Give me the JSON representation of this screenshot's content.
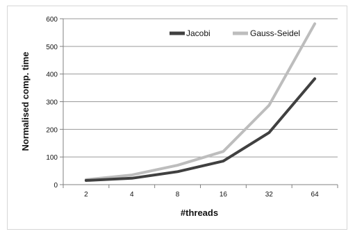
{
  "chart_data": {
    "type": "line",
    "title": "",
    "categories": [
      "2",
      "4",
      "8",
      "16",
      "32",
      "64"
    ],
    "series": [
      {
        "name": "Jacobi",
        "values": [
          15,
          23,
          47,
          85,
          188,
          383
        ],
        "color": "#404040"
      },
      {
        "name": "Gauss-Seidel",
        "values": [
          18,
          35,
          70,
          120,
          287,
          582
        ],
        "color": "#bdbdbd"
      }
    ],
    "xlabel": "#threads",
    "ylabel": "Normalised comp. time",
    "ylim": [
      0,
      600
    ],
    "yticks": [
      0,
      100,
      200,
      300,
      400,
      500,
      600
    ],
    "grid": true,
    "legend_position": "top-right"
  }
}
